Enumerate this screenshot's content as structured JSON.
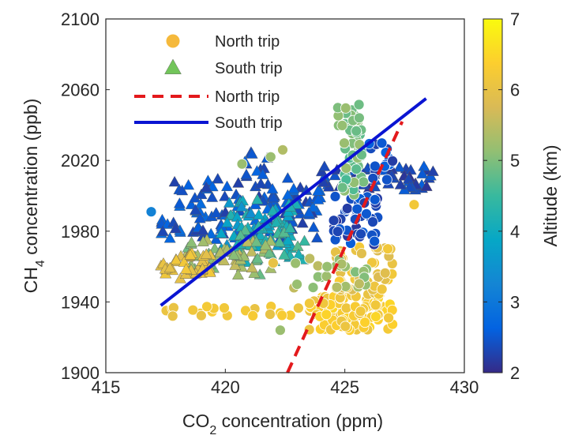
{
  "chart_data": {
    "type": "scatter",
    "xlabel": {
      "main": "CO",
      "sub": "2",
      "rest": " concentration (ppm)"
    },
    "ylabel": {
      "main": "CH",
      "sub": "4",
      "rest": " concentration (ppb)"
    },
    "xlim": [
      415,
      430
    ],
    "ylim": [
      1900,
      2100
    ],
    "xticks": [
      "415",
      "420",
      "425",
      "430"
    ],
    "yticks": [
      "1900",
      "1940",
      "1980",
      "2020",
      "2060",
      "2100"
    ],
    "colorbar": {
      "label": "Altitude (km)",
      "range": [
        2,
        7
      ],
      "ticks": [
        "2",
        "3",
        "4",
        "5",
        "6",
        "7"
      ],
      "colormap": [
        "#352a87",
        "#0363e1",
        "#1485d4",
        "#06a7c6",
        "#38b99e",
        "#92bf73",
        "#d9ba56",
        "#fcce2e",
        "#f9fb0e"
      ]
    },
    "legend": [
      {
        "label": "North trip",
        "marker": "circle",
        "color": "#f5b93c"
      },
      {
        "label": "South trip",
        "marker": "triangle",
        "color": "#72c55a"
      },
      {
        "label": "North trip",
        "marker": "dashed-line",
        "color": "#e3191c"
      },
      {
        "label": "South trip",
        "marker": "solid-line",
        "color": "#0a14d2"
      }
    ],
    "fit_lines": [
      {
        "name": "North trip",
        "color": "#e3191c",
        "style": "dashed",
        "x": [
          422.6,
          427.4
        ],
        "y": [
          1900,
          2042
        ]
      },
      {
        "name": "South trip",
        "color": "#0a14d2",
        "style": "solid",
        "x": [
          417.3,
          428.4
        ],
        "y": [
          1938,
          2055
        ]
      }
    ],
    "series": [
      {
        "name": "North trip",
        "marker": "circle",
        "clusters": [
          {
            "x": [
              417.5,
              425.5
            ],
            "y": [
              1932,
              1938
            ],
            "alt": [
              6.0,
              6.3
            ],
            "n": 30
          },
          {
            "x": [
              423.5,
              427.0
            ],
            "y": [
              1924,
              1944
            ],
            "alt": [
              6.0,
              6.5
            ],
            "n": 90
          },
          {
            "x": [
              424.5,
              427.0
            ],
            "y": [
              1944,
              1972
            ],
            "alt": [
              5.8,
              6.3
            ],
            "n": 45
          },
          {
            "x": [
              422.5,
              426.0
            ],
            "y": [
              1948,
              1965
            ],
            "alt": [
              5.0,
              5.6
            ],
            "n": 25
          },
          {
            "x": [
              424.5,
              426.5
            ],
            "y": [
              1972,
              2000
            ],
            "alt": [
              2.1,
              2.6
            ],
            "n": 45
          },
          {
            "x": [
              424.9,
              425.8
            ],
            "y": [
              2000,
              2035
            ],
            "alt": [
              4.6,
              5.2
            ],
            "n": 35
          },
          {
            "x": [
              424.6,
              425.8
            ],
            "y": [
              2035,
              2054
            ],
            "alt": [
              4.8,
              5.2
            ],
            "n": 22
          },
          {
            "x": [
              426.0,
              427.0
            ],
            "y": [
              2008,
              2030
            ],
            "alt": [
              2.2,
              2.7
            ],
            "n": 15
          }
        ],
        "points": [
          {
            "x": 416.9,
            "y": 1991,
            "alt": 3.2
          },
          {
            "x": 420.7,
            "y": 2018,
            "alt": 5.2
          },
          {
            "x": 422.4,
            "y": 2026,
            "alt": 5.4
          },
          {
            "x": 421.9,
            "y": 2022,
            "alt": 5.2
          },
          {
            "x": 422.3,
            "y": 1924,
            "alt": 5.2
          },
          {
            "x": 427.9,
            "y": 1995,
            "alt": 6.2
          },
          {
            "x": 426.8,
            "y": 1970,
            "alt": 6.2
          },
          {
            "x": 422.0,
            "y": 1962,
            "alt": 6.0
          },
          {
            "x": 417.8,
            "y": 1932,
            "alt": 6.0
          }
        ]
      },
      {
        "name": "South trip",
        "marker": "triangle",
        "clusters": [
          {
            "x": [
              417.3,
              424.0
            ],
            "y": [
              1975,
              2010
            ],
            "alt": [
              2.2,
              2.8
            ],
            "n": 130
          },
          {
            "x": [
              424.0,
              428.7
            ],
            "y": [
              2003,
              2017
            ],
            "alt": [
              2.1,
              2.6
            ],
            "n": 60
          },
          {
            "x": [
              419.8,
              423.0
            ],
            "y": [
              1970,
              1998
            ],
            "alt": [
              3.4,
              4.3
            ],
            "n": 55
          },
          {
            "x": [
              420.5,
              423.5
            ],
            "y": [
              1962,
              1985
            ],
            "alt": [
              4.0,
              4.8
            ],
            "n": 35
          },
          {
            "x": [
              418.3,
              422.0
            ],
            "y": [
              1955,
              1975
            ],
            "alt": [
              4.8,
              5.6
            ],
            "n": 55
          },
          {
            "x": [
              417.3,
              419.5
            ],
            "y": [
              1952,
              1968
            ],
            "alt": [
              5.9,
              6.2
            ],
            "n": 40
          },
          {
            "x": [
              420.8,
              421.8
            ],
            "y": [
              2010,
              2025
            ],
            "alt": [
              2.3,
              2.7
            ],
            "n": 12
          }
        ]
      }
    ]
  }
}
